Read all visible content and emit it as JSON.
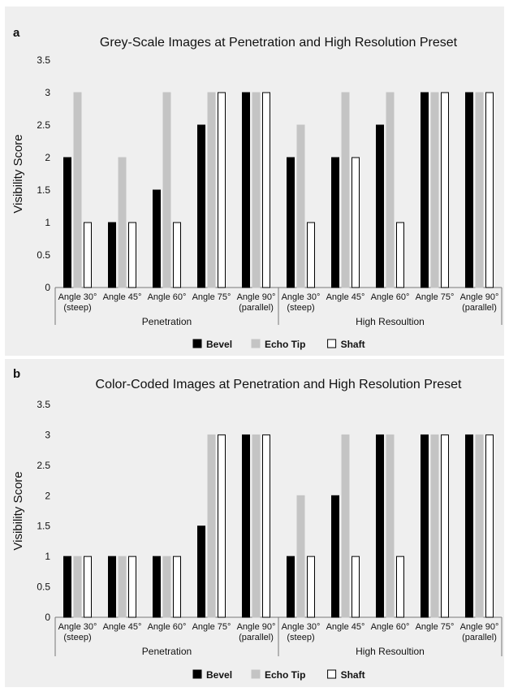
{
  "chart_data": [
    {
      "type": "bar",
      "panel_label": "a",
      "title": "Grey-Scale Images at Penetration and High Resolution Preset",
      "ylabel": "Visibility Score",
      "ylim": [
        0,
        3.5
      ],
      "yticks": [
        "0",
        "0.5",
        "1",
        "1.5",
        "2",
        "2.5",
        "3",
        "3.5"
      ],
      "categories": [
        "Angle 30° (steep)",
        "Angle 45°",
        "Angle 60°",
        "Angle 75°",
        "Angle 90° (parallel)",
        "Angle 30° (steep)",
        "Angle 45°",
        "Angle 60°",
        "Angle 75°",
        "Angle 90° (parallel)"
      ],
      "groups": [
        "Penetration",
        "High Resoultion"
      ],
      "series": [
        {
          "name": "Bevel",
          "color": "#000000",
          "values": [
            2,
            1,
            1.5,
            2.5,
            3,
            2,
            2,
            2.5,
            3,
            3
          ]
        },
        {
          "name": "Echo Tip",
          "color": "#c4c4c4",
          "values": [
            3,
            2,
            3,
            3,
            3,
            2.5,
            3,
            3,
            3,
            3
          ]
        },
        {
          "name": "Shaft",
          "color": "#ffffff",
          "values": [
            1,
            1,
            1,
            3,
            3,
            1,
            2,
            1,
            3,
            3
          ]
        }
      ],
      "grid": false,
      "legend_position": "bottom"
    },
    {
      "type": "bar",
      "panel_label": "b",
      "title": "Color-Coded Images at Penetration and High Resolution Preset",
      "ylabel": "Visibility Score",
      "ylim": [
        0,
        3.5
      ],
      "yticks": [
        "0",
        "0.5",
        "1",
        "1.5",
        "2",
        "2.5",
        "3",
        "3.5"
      ],
      "categories": [
        "Angle 30° (steep)",
        "Angle 45°",
        "Angle 60°",
        "Angle 75°",
        "Angle 90° (parallel)",
        "Angle 30° (steep)",
        "Angle 45°",
        "Angle 60°",
        "Angle 75°",
        "Angle 90° (parallel)"
      ],
      "groups": [
        "Penetration",
        "High Resoultion"
      ],
      "series": [
        {
          "name": "Bevel",
          "color": "#000000",
          "values": [
            1,
            1,
            1,
            1.5,
            3,
            1,
            2,
            3,
            3,
            3
          ]
        },
        {
          "name": "Echo Tip",
          "color": "#c4c4c4",
          "values": [
            1,
            1,
            1,
            3,
            3,
            2,
            3,
            3,
            3,
            3
          ]
        },
        {
          "name": "Shaft",
          "color": "#ffffff",
          "values": [
            1,
            1,
            1,
            3,
            3,
            1,
            1,
            1,
            3,
            3
          ]
        }
      ],
      "grid": false,
      "legend_position": "bottom"
    }
  ]
}
